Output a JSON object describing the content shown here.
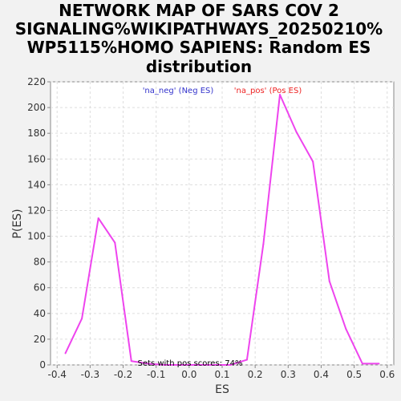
{
  "chart_data": {
    "type": "line",
    "title_lines": [
      "NETWORK MAP OF SARS COV 2",
      "SIGNALING%WIKIPATHWAYS_20250210%",
      "WP5115%HOMO SAPIENS: Random ES",
      "distribution"
    ],
    "xlabel": "ES",
    "ylabel": "P(ES)",
    "xlim": [
      -0.42,
      0.62
    ],
    "ylim": [
      0,
      220
    ],
    "xticks": [
      "-0.4",
      "-0.3",
      "-0.2",
      "-0.1",
      "0.0",
      "0.1",
      "0.2",
      "0.3",
      "0.4",
      "0.5",
      "0.6"
    ],
    "yticks": [
      "0",
      "20",
      "40",
      "60",
      "80",
      "100",
      "120",
      "140",
      "160",
      "180",
      "200",
      "220"
    ],
    "grid": true,
    "legend": {
      "placement": "top-center",
      "entries": [
        {
          "label": "'na_neg' (Neg ES)",
          "color": "#3333cc"
        },
        {
          "label": "'na_pos' (Pos ES)",
          "color": "#ee2222"
        }
      ]
    },
    "series": [
      {
        "color": "#ee44ee",
        "x": [
          -0.375,
          -0.325,
          -0.275,
          -0.225,
          -0.175,
          -0.125,
          -0.075,
          -0.025,
          0.025,
          0.075,
          0.125,
          0.175,
          0.225,
          0.275,
          0.325,
          0.375,
          0.425,
          0.475,
          0.525,
          0.575
        ],
        "y": [
          9,
          36,
          114,
          95,
          3,
          1,
          0,
          0,
          0,
          0,
          0,
          4,
          94,
          210,
          181,
          158,
          65,
          28,
          1,
          1
        ]
      }
    ],
    "annotation": "Sets with pos scores: 74%"
  }
}
